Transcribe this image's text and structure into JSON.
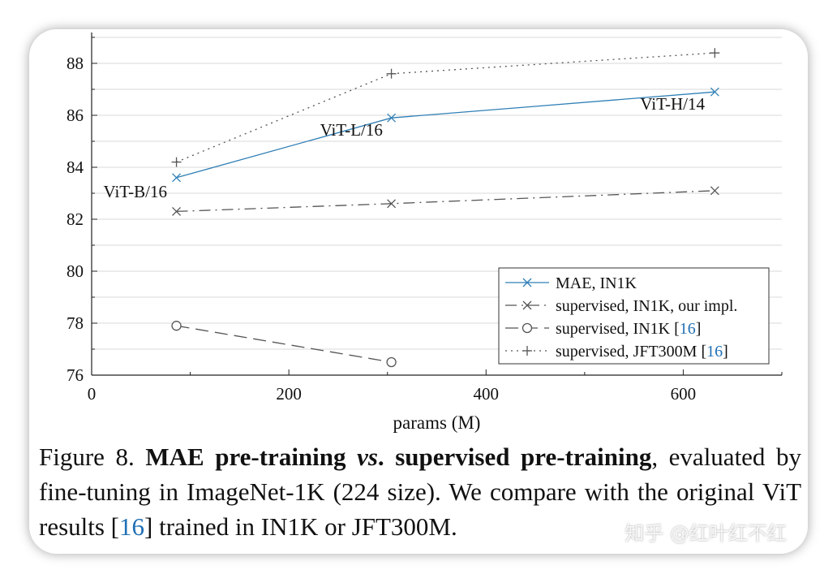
{
  "chart_data": {
    "type": "line",
    "xlabel": "params (M)",
    "ylabel": "",
    "xlim": [
      0,
      700
    ],
    "ylim": [
      76,
      89
    ],
    "x_ticks": [
      0,
      200,
      400,
      600
    ],
    "y_ticks": [
      76,
      78,
      80,
      82,
      84,
      86,
      88
    ],
    "grid": "horizontal",
    "legend_position": "bottom-right",
    "series": [
      {
        "name": "MAE, IN1K",
        "color": "#2f7fb6",
        "line_style": "solid",
        "marker": "x",
        "x": [
          86,
          304,
          632
        ],
        "y": [
          83.6,
          85.9,
          86.9
        ]
      },
      {
        "name": "supervised, IN1K, our impl.",
        "color": "#555555",
        "line_style": "dashdot",
        "marker": "x",
        "x": [
          86,
          304,
          632
        ],
        "y": [
          82.3,
          82.6,
          83.1
        ]
      },
      {
        "name": "supervised, IN1K",
        "cite": "16",
        "color": "#555555",
        "line_style": "dashed",
        "marker": "o",
        "x": [
          86,
          304
        ],
        "y": [
          77.9,
          76.5
        ]
      },
      {
        "name": "supervised, JFT300M",
        "cite": "16",
        "color": "#555555",
        "line_style": "dotted",
        "marker": "+",
        "x": [
          86,
          304,
          632
        ],
        "y": [
          84.2,
          87.6,
          88.4
        ]
      }
    ],
    "annotations": [
      {
        "text": "ViT-B/16",
        "x": 86,
        "y": 83.6
      },
      {
        "text": "ViT-L/16",
        "x": 304,
        "y": 85.9
      },
      {
        "text": "ViT-H/14",
        "x": 632,
        "y": 86.9
      }
    ]
  },
  "caption": {
    "prefix": "Figure 8. ",
    "bold1": "MAE pre-training ",
    "bold_italic": "vs",
    "bold2": ". supervised pre-training",
    "text1": ", evaluated by fine-tuning in ImageNet-1K (224 size). We compare with the original ViT results [",
    "cite": "16",
    "text2": "] trained in IN1K or JFT300M."
  },
  "watermark": "知乎 @红叶红不红"
}
